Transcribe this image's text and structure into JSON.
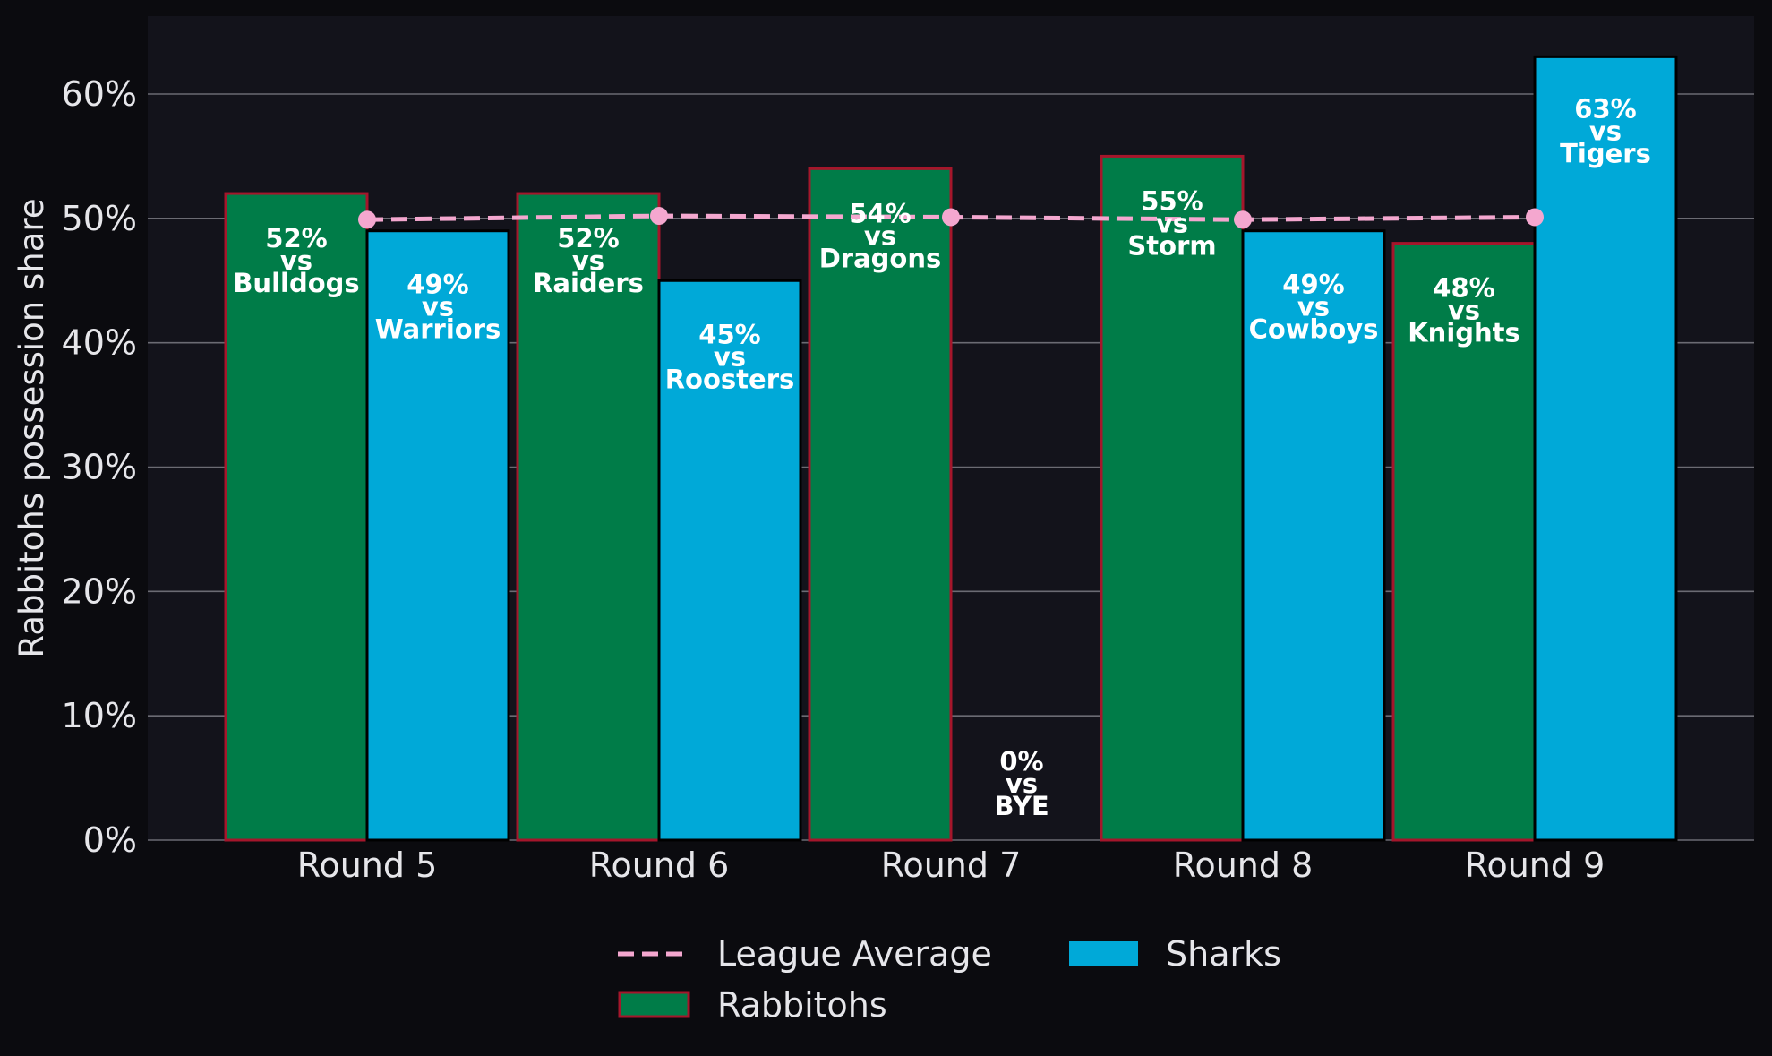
{
  "chart_data": {
    "type": "bar",
    "title": "",
    "xlabel": "",
    "ylabel": "Rabbitohs possession share",
    "ylim": [
      0,
      66
    ],
    "y_ticks": [
      0,
      10,
      20,
      30,
      40,
      50,
      60
    ],
    "y_tick_suffix": "%",
    "grid": "horizontal",
    "legend_position": "bottom-center",
    "categories": [
      "Round 5",
      "Round 6",
      "Round 7",
      "Round 8",
      "Round 9"
    ],
    "series": [
      {
        "name": "Rabbitohs",
        "color": "#007c48",
        "edge_color": "#a5162b",
        "values": [
          52,
          52,
          54,
          55,
          48
        ],
        "labels": [
          "52%\nvs\nBulldogs",
          "52%\nvs\nRaiders",
          "54%\nvs\nDragons",
          "55%\nvs\nStorm",
          "48%\nvs\nKnights"
        ]
      },
      {
        "name": "Sharks",
        "color": "#00a9d8",
        "edge_color": "#000000",
        "values": [
          49,
          45,
          0,
          49,
          63
        ],
        "labels": [
          "49%\nvs\nWarriors",
          "45%\nvs\nRoosters",
          "0%\nvs\nBYE",
          "49%\nvs\nCowboys",
          "63%\nvs\nTigers"
        ]
      }
    ],
    "line": {
      "name": "League Average",
      "color": "#f4a7cf",
      "style": "dashed",
      "values": [
        49.9,
        50.2,
        50.1,
        49.9,
        50.1
      ]
    },
    "legend_order": [
      "League Average",
      "Rabbitohs",
      "Sharks"
    ],
    "colors": {
      "page_background": "#0b0b0f",
      "plot_background": "#13131b",
      "grid": "#6b6b73",
      "text": "#e6e6ea",
      "bar_label": "#ffffff"
    }
  }
}
